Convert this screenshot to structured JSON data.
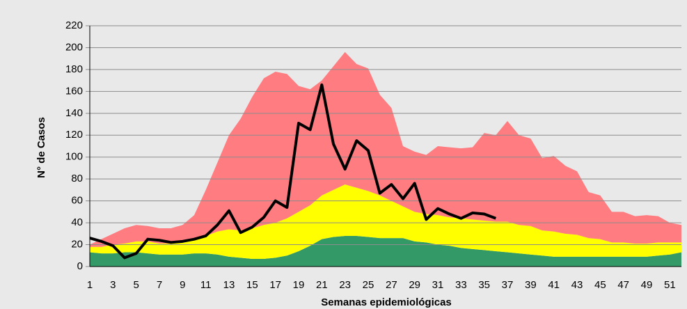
{
  "chart_data": {
    "type": "stacked_area_line",
    "xlabel": "Semanas epidemiológicas",
    "ylabel": "N° de Casos",
    "categories": [
      1,
      null,
      3,
      null,
      5,
      null,
      7,
      null,
      9,
      null,
      11,
      null,
      13,
      null,
      15,
      null,
      17,
      null,
      19,
      null,
      21,
      null,
      23,
      null,
      25,
      null,
      27,
      null,
      29,
      null,
      31,
      null,
      33,
      null,
      35,
      null,
      37,
      null,
      39,
      null,
      41,
      null,
      43,
      null,
      45,
      null,
      47,
      null,
      49,
      null,
      51,
      null
    ],
    "ylim": [
      0,
      220
    ],
    "yticks": [
      0,
      20,
      40,
      60,
      80,
      100,
      120,
      140,
      160,
      180,
      200,
      220
    ],
    "grid": true,
    "series": [
      {
        "color": "#339966",
        "values": [
          13,
          12,
          12,
          13,
          13,
          12,
          11,
          11,
          11,
          12,
          12,
          11,
          9,
          8,
          7,
          7,
          8,
          10,
          14,
          19,
          25,
          27,
          28,
          28,
          27,
          26,
          26,
          26,
          23,
          22,
          20,
          19,
          17,
          16,
          15,
          14,
          13,
          12,
          11,
          10,
          9,
          9,
          9,
          9,
          9,
          9,
          9,
          9,
          9,
          10,
          11,
          13
        ]
      },
      {
        "color": "#ffff00",
        "values": [
          5,
          6,
          8,
          8,
          10,
          11,
          10,
          10,
          11,
          13,
          16,
          21,
          25,
          25,
          28,
          31,
          32,
          34,
          36,
          37,
          40,
          43,
          47,
          44,
          42,
          39,
          34,
          29,
          27,
          26,
          27,
          26,
          27,
          27,
          27,
          27,
          28,
          26,
          26,
          23,
          23,
          21,
          20,
          17,
          16,
          13,
          13,
          12,
          12,
          12,
          11,
          9
        ]
      },
      {
        "color": "#ff7c80",
        "values": [
          2,
          7,
          10,
          14,
          15,
          14,
          14,
          14,
          16,
          22,
          42,
          63,
          86,
          102,
          120,
          134,
          138,
          132,
          115,
          106,
          105,
          113,
          121,
          113,
          112,
          92,
          85,
          55,
          55,
          54,
          63,
          64,
          64,
          66,
          80,
          79,
          92,
          82,
          80,
          66,
          69,
          62,
          58,
          42,
          40,
          28,
          28,
          25,
          26,
          24,
          18,
          16
        ]
      }
    ],
    "line": {
      "color": "#000000",
      "values": [
        26,
        23,
        19,
        8,
        12,
        25,
        24,
        22,
        23,
        25,
        28,
        38,
        51,
        31,
        36,
        45,
        60,
        54,
        131,
        125,
        166,
        112,
        89,
        115,
        106,
        67,
        75,
        62,
        76,
        43,
        53,
        48,
        44,
        49,
        48,
        44,
        null,
        null,
        null,
        null,
        null,
        null,
        null,
        null,
        null,
        null,
        null,
        null,
        null,
        null,
        null,
        null
      ]
    }
  }
}
